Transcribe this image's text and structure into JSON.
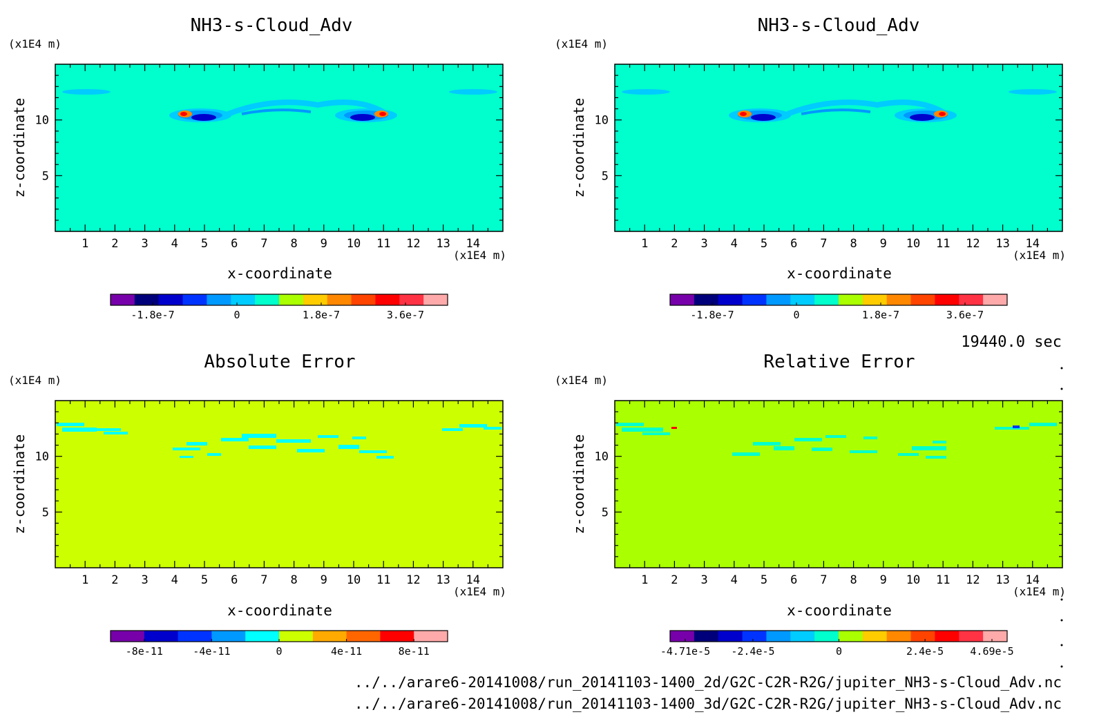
{
  "panels": [
    {
      "title": "NH3-s-Cloud_Adv",
      "xlabel": "x-coordinate",
      "ylabel": "z-coordinate",
      "xunit": "(x1E4 m)",
      "yunit": "(x1E4 m)",
      "field": "cloud",
      "colorbar_colors": [
        "#7700aa",
        "#00007a",
        "#0000cc",
        "#0033ff",
        "#0099ff",
        "#00ccff",
        "#00ffcc",
        "#aaff00",
        "#ffcc00",
        "#ff8800",
        "#ff4400",
        "#ff0000",
        "#ff3344",
        "#ffaaaa"
      ],
      "colorbar_labels": [
        "-1.8e-7",
        "0",
        "1.8e-7",
        "3.6e-7"
      ]
    },
    {
      "title": "NH3-s-Cloud_Adv",
      "xlabel": "x-coordinate",
      "ylabel": "z-coordinate",
      "xunit": "(x1E4 m)",
      "yunit": "(x1E4 m)",
      "field": "cloud",
      "colorbar_colors": [
        "#7700aa",
        "#00007a",
        "#0000cc",
        "#0033ff",
        "#0099ff",
        "#00ccff",
        "#00ffcc",
        "#aaff00",
        "#ffcc00",
        "#ff8800",
        "#ff4400",
        "#ff0000",
        "#ff3344",
        "#ffaaaa"
      ],
      "colorbar_labels": [
        "-1.8e-7",
        "0",
        "1.8e-7",
        "3.6e-7"
      ]
    },
    {
      "title": "Absolute Error",
      "xlabel": "x-coordinate",
      "ylabel": "z-coordinate",
      "xunit": "(x1E4 m)",
      "yunit": "(x1E4 m)",
      "field": "abs",
      "colorbar_colors": [
        "#7700aa",
        "#0000cc",
        "#0033ff",
        "#0099ff",
        "#00ffff",
        "#ccff00",
        "#ffaa00",
        "#ff6600",
        "#ff0000",
        "#ffaaaa"
      ],
      "colorbar_labels": [
        "-8e-11",
        "-4e-11",
        "0",
        "4e-11",
        "8e-11"
      ]
    },
    {
      "title": "Relative Error",
      "xlabel": "x-coordinate",
      "ylabel": "z-coordinate",
      "xunit": "(x1E4 m)",
      "yunit": "(x1E4 m)",
      "field": "rel",
      "colorbar_colors": [
        "#7700aa",
        "#00007a",
        "#0000cc",
        "#0033ff",
        "#0099ff",
        "#00ccff",
        "#00ffcc",
        "#aaff00",
        "#ffcc00",
        "#ff8800",
        "#ff4400",
        "#ff0000",
        "#ff3344",
        "#ffaaaa"
      ],
      "colorbar_labels": [
        "-4.71e-5",
        "-2.4e-5",
        "0",
        "2.4e-5",
        "4.69e-5"
      ]
    }
  ],
  "time_label": "19440.0 sec",
  "file_paths": [
    "../../arare6-20141008/run_20141103-1400_2d/G2C-C2R-R2G/jupiter_NH3-s-Cloud_Adv.nc",
    "../../arare6-20141008/run_20141103-1400_3d/G2C-C2R-R2G/jupiter_NH3-s-Cloud_Adv.nc"
  ],
  "colors": {
    "cloud_background": "#00ffcc",
    "abs_background": "#ccff00",
    "rel_background": "#aaff00"
  },
  "chart_data": [
    {
      "type": "heatmap",
      "title": "NH3-s-Cloud_Adv",
      "xlabel": "x-coordinate",
      "ylabel": "z-coordinate",
      "xlim": [
        0,
        15
      ],
      "ylim": [
        0,
        15
      ],
      "xticks": [
        1,
        2,
        3,
        4,
        5,
        6,
        7,
        8,
        9,
        10,
        11,
        12,
        13,
        14
      ],
      "yticks": [
        5,
        10
      ],
      "colorbar": {
        "range": [
          -2.7e-07,
          4.5e-07
        ],
        "ticks": [
          "-1.8e-7",
          "0",
          "1.8e-7",
          "3.6e-7"
        ]
      }
    },
    {
      "type": "heatmap",
      "title": "NH3-s-Cloud_Adv",
      "xlabel": "x-coordinate",
      "ylabel": "z-coordinate",
      "xlim": [
        0,
        15
      ],
      "ylim": [
        0,
        15
      ],
      "xticks": [
        1,
        2,
        3,
        4,
        5,
        6,
        7,
        8,
        9,
        10,
        11,
        12,
        13,
        14
      ],
      "yticks": [
        5,
        10
      ],
      "colorbar": {
        "range": [
          -2.7e-07,
          4.5e-07
        ],
        "ticks": [
          "-1.8e-7",
          "0",
          "1.8e-7",
          "3.6e-7"
        ]
      }
    },
    {
      "type": "heatmap",
      "title": "Absolute Error",
      "xlabel": "x-coordinate",
      "ylabel": "z-coordinate",
      "xlim": [
        0,
        15
      ],
      "ylim": [
        0,
        15
      ],
      "xticks": [
        1,
        2,
        3,
        4,
        5,
        6,
        7,
        8,
        9,
        10,
        11,
        12,
        13,
        14
      ],
      "yticks": [
        5,
        10
      ],
      "colorbar": {
        "range": [
          -1e-10,
          1e-10
        ],
        "ticks": [
          "-8e-11",
          "-4e-11",
          "0",
          "4e-11",
          "8e-11"
        ]
      }
    },
    {
      "type": "heatmap",
      "title": "Relative Error",
      "xlabel": "x-coordinate",
      "ylabel": "z-coordinate",
      "xlim": [
        0,
        15
      ],
      "ylim": [
        0,
        15
      ],
      "xticks": [
        1,
        2,
        3,
        4,
        5,
        6,
        7,
        8,
        9,
        10,
        11,
        12,
        13,
        14
      ],
      "yticks": [
        5,
        10
      ],
      "colorbar": {
        "range": [
          -4.71e-05,
          4.69e-05
        ],
        "ticks": [
          "-4.71e-5",
          "-2.4e-5",
          "0",
          "2.4e-5",
          "4.69e-5"
        ]
      }
    }
  ]
}
